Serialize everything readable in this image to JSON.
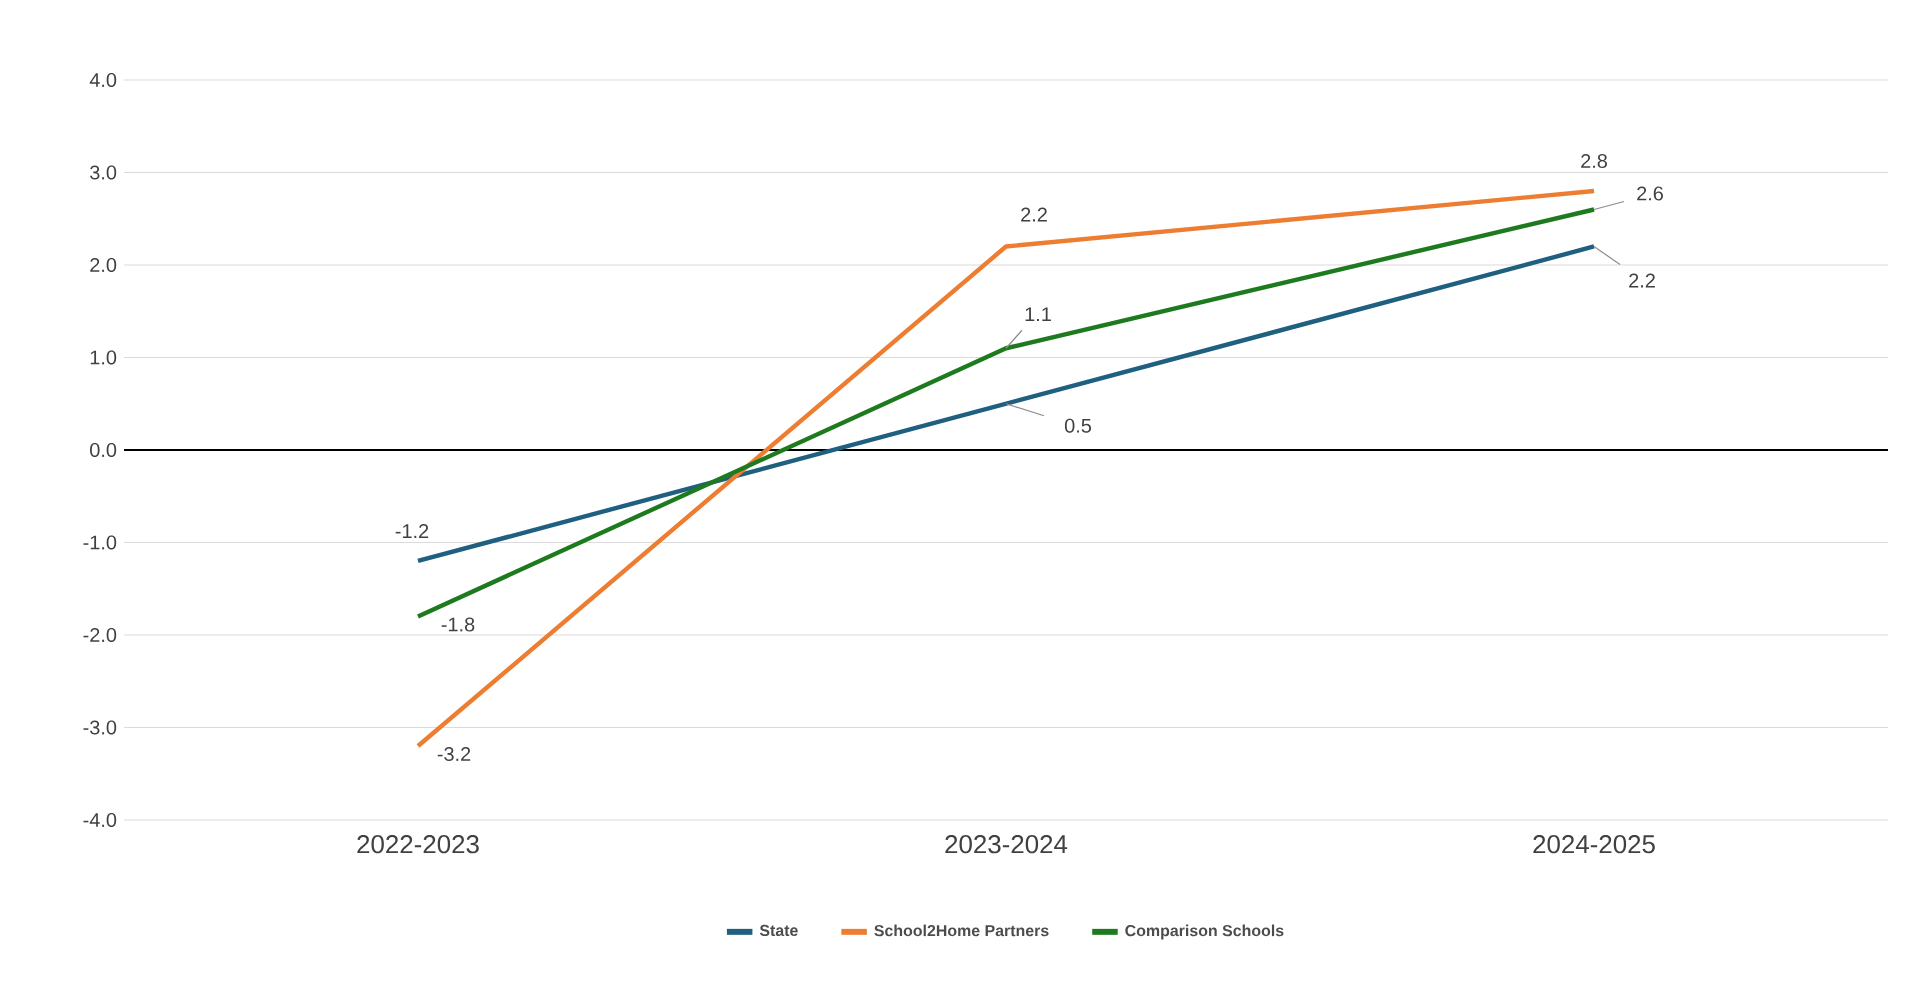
{
  "chart_data": {
    "type": "line",
    "categories": [
      "2022-2023",
      "2023-2024",
      "2024-2025"
    ],
    "series": [
      {
        "name": "State",
        "color": "#1f5f7f",
        "values": [
          -1.2,
          0.5,
          2.2
        ]
      },
      {
        "name": "School2Home Partners",
        "color": "#ed7d31",
        "values": [
          -3.2,
          2.2,
          2.8
        ]
      },
      {
        "name": "Comparison Schools",
        "color": "#1e7a1e",
        "values": [
          -1.8,
          1.1,
          2.6
        ]
      }
    ],
    "ylim": [
      -4,
      4
    ],
    "yticks": [
      {
        "value": -4,
        "label": "-4.0"
      },
      {
        "value": -3,
        "label": "-3.0"
      },
      {
        "value": -2,
        "label": "-2.0"
      },
      {
        "value": -1,
        "label": "-1.0"
      },
      {
        "value": 0,
        "label": "0.0"
      },
      {
        "value": 1,
        "label": "1.0"
      },
      {
        "value": 2,
        "label": "2.0"
      },
      {
        "value": 3,
        "label": "3.0"
      },
      {
        "value": 4,
        "label": "4.0"
      }
    ],
    "grid": "y",
    "legend": "bottom",
    "marker": "none",
    "line_style": "solid",
    "data_labels": true
  }
}
